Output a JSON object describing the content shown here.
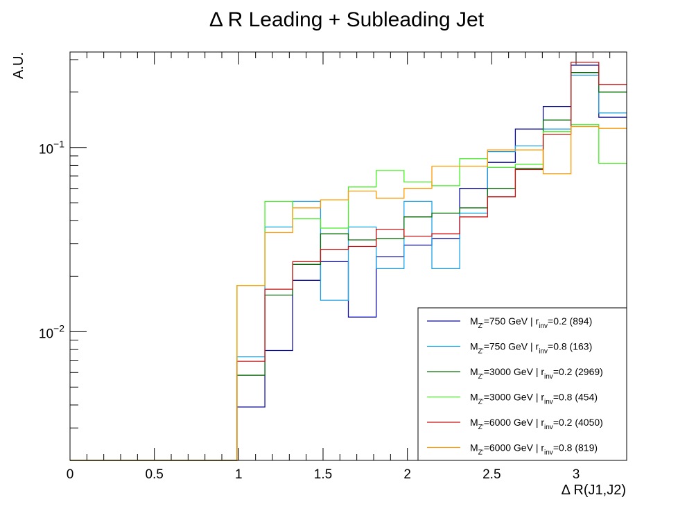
{
  "chart_data": {
    "type": "line",
    "style": "step-histogram",
    "title": "Δ R Leading + Subleading Jet",
    "xlabel": "Δ R(J1,J2)",
    "ylabel": "A.U.",
    "xlim": [
      0,
      3.3
    ],
    "ylim": [
      0.002,
      0.33
    ],
    "yscale": "log",
    "x_ticks": [
      0,
      0.5,
      1,
      1.5,
      2,
      2.5,
      3
    ],
    "x_tick_labels": [
      "0",
      "0.5",
      "1",
      "1.5",
      "2",
      "2.5",
      "3"
    ],
    "y_ticks": [
      0.01,
      0.1
    ],
    "y_tick_labels": [
      {
        "base": "10",
        "exp": "−2"
      },
      {
        "base": "10",
        "exp": "−1"
      }
    ],
    "grid": false,
    "legend_position": "bottom-right",
    "bin_edges": [
      0,
      0.165,
      0.33,
      0.495,
      0.66,
      0.825,
      0.99,
      1.155,
      1.32,
      1.485,
      1.65,
      1.815,
      1.98,
      2.145,
      2.31,
      2.475,
      2.64,
      2.805,
      2.97,
      3.135,
      3.3
    ],
    "series": [
      {
        "legend": {
          "m_sub": "Z'",
          "m_val": "=750 GeV | r",
          "r_sub": "inv",
          "r_val": "=0.2 (894)"
        },
        "color": "#0a0a9e",
        "values": [
          0,
          0,
          0,
          0,
          0,
          0,
          0.0039,
          0.0079,
          0.019,
          0.024,
          0.012,
          0.0255,
          0.0295,
          0.032,
          0.06,
          0.083,
          0.126,
          0.167,
          0.28,
          0.146
        ]
      },
      {
        "legend": {
          "m_sub": "Z'",
          "m_val": "=750 GeV | r",
          "r_sub": "inv",
          "r_val": "=0.8 (163)"
        },
        "color": "#1aa3e8",
        "values": [
          0,
          0,
          0,
          0,
          0,
          0,
          0.0073,
          0.037,
          0.051,
          0.0148,
          0.037,
          0.022,
          0.051,
          0.022,
          0.044,
          0.095,
          0.102,
          0.126,
          0.247,
          0.154
        ]
      },
      {
        "legend": {
          "m_sub": "Z'",
          "m_val": "=3000 GeV | r",
          "r_sub": "inv",
          "r_val": "=0.2 (2969)"
        },
        "color": "#0a6e0a",
        "values": [
          0,
          0,
          0,
          0,
          0,
          0,
          0.0058,
          0.0158,
          0.0232,
          0.034,
          0.0315,
          0.032,
          0.042,
          0.044,
          0.047,
          0.06,
          0.077,
          0.141,
          0.255,
          0.2
        ]
      },
      {
        "legend": {
          "m_sub": "Z'",
          "m_val": "=3000 GeV | r",
          "r_sub": "inv",
          "r_val": "=0.8 (454)"
        },
        "color": "#44ee22",
        "values": [
          0,
          0,
          0,
          0,
          0,
          0,
          0.0178,
          0.051,
          0.041,
          0.0365,
          0.061,
          0.075,
          0.065,
          0.062,
          0.087,
          0.078,
          0.081,
          0.122,
          0.133,
          0.082
        ]
      },
      {
        "legend": {
          "m_sub": "Z'",
          "m_val": "=6000 GeV | r",
          "r_sub": "inv",
          "r_val": "=0.2 (4050)"
        },
        "color": "#cc1111",
        "values": [
          0,
          0,
          0,
          0,
          0,
          0,
          0.0069,
          0.017,
          0.024,
          0.028,
          0.029,
          0.036,
          0.033,
          0.034,
          0.042,
          0.054,
          0.076,
          0.118,
          0.29,
          0.22
        ]
      },
      {
        "legend": {
          "m_sub": "Z'",
          "m_val": "=6000 GeV | r",
          "r_sub": "inv",
          "r_val": "=0.8 (819)"
        },
        "color": "#ff9900",
        "values": [
          0,
          0,
          0,
          0,
          0,
          0,
          0.0178,
          0.0345,
          0.047,
          0.052,
          0.058,
          0.053,
          0.06,
          0.079,
          0.079,
          0.097,
          0.097,
          0.072,
          0.13,
          0.127
        ]
      }
    ]
  }
}
